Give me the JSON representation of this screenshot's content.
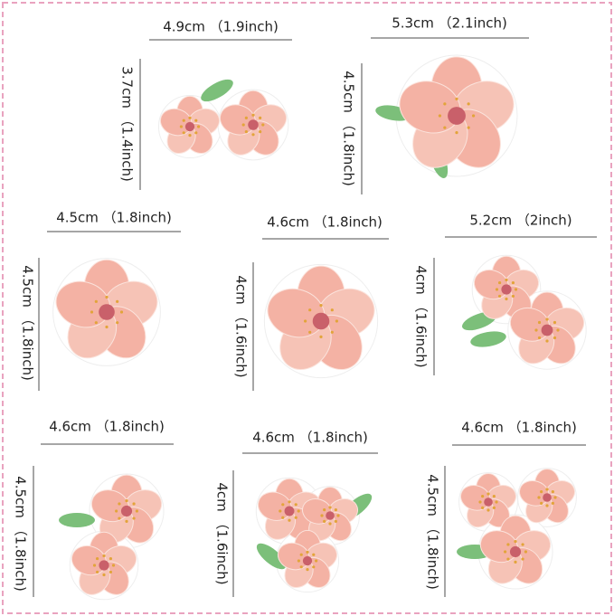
{
  "items": [
    {
      "width": "4.9cm （1.9inch)",
      "height": "3.7cm （1.4inch)"
    },
    {
      "width": "5.3cm （2.1inch)",
      "height": "4.5cm （1.8inch)"
    },
    {
      "width": "4.5cm （1.8inch)",
      "height": "4.5cm （1.8inch)"
    },
    {
      "width": "4.6cm （1.8inch)",
      "height": "4cm （1.6inch)"
    },
    {
      "width": "5.2cm （2inch)",
      "height": "4cm （1.6inch)"
    },
    {
      "width": "4.6cm （1.8inch)",
      "height": "4.5cm （1.8inch)"
    },
    {
      "width": "4.6cm （1.8inch)",
      "height": "4cm （1.6inch)"
    },
    {
      "width": "4.6cm （1.8inch)",
      "height": "4.5cm （1.8inch)"
    }
  ]
}
